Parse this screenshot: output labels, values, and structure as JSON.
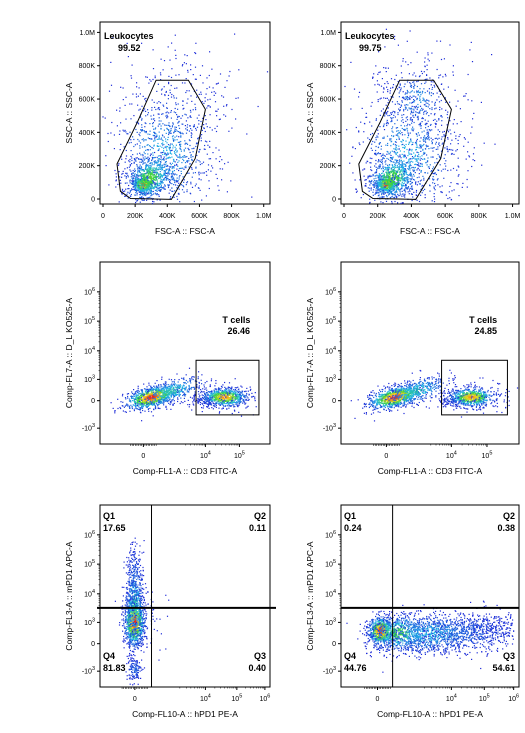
{
  "chart_data": [
    {
      "type": "scatter",
      "plot_kind": "flow-cytometry density dot plot",
      "xlabel": "FSC-A :: FSC-A",
      "ylabel": "SSC-A :: SSC-A",
      "x_ticks": [
        "0",
        "200K",
        "400K",
        "600K",
        "800K",
        "1.0M"
      ],
      "y_ticks": [
        "0",
        "200K",
        "400K",
        "600K",
        "800K",
        "1.0M"
      ],
      "xlim": [
        0,
        1000000
      ],
      "ylim": [
        0,
        1000000
      ],
      "gates": [
        {
          "name": "Leukocytes",
          "value": "99.52",
          "shape": "polygon"
        }
      ]
    },
    {
      "type": "scatter",
      "plot_kind": "flow-cytometry density dot plot",
      "xlabel": "FSC-A :: FSC-A",
      "ylabel": "SSC-A :: SSC-A",
      "x_ticks": [
        "0",
        "200K",
        "400K",
        "600K",
        "800K",
        "1.0M"
      ],
      "y_ticks": [
        "0",
        "200K",
        "400K",
        "600K",
        "800K",
        "1.0M"
      ],
      "xlim": [
        0,
        1000000
      ],
      "ylim": [
        0,
        1000000
      ],
      "gates": [
        {
          "name": "Leukocytes",
          "value": "99.75",
          "shape": "polygon"
        }
      ]
    },
    {
      "type": "scatter",
      "plot_kind": "flow-cytometry density dot plot",
      "xlabel": "Comp-FL1-A :: CD3 FITC-A",
      "ylabel": "Comp-FL7-A :: D_L KO525-A",
      "x_ticks": [
        "0",
        "10^4",
        "10^5"
      ],
      "y_ticks": [
        "-10^3",
        "0",
        "10^3",
        "10^4",
        "10^5",
        "10^6"
      ],
      "scale": "biexponential",
      "gates": [
        {
          "name": "T cells",
          "value": "26.46",
          "shape": "rectangle"
        }
      ]
    },
    {
      "type": "scatter",
      "plot_kind": "flow-cytometry density dot plot",
      "xlabel": "Comp-FL1-A :: CD3 FITC-A",
      "ylabel": "Comp-FL7-A :: D_L KO525-A",
      "x_ticks": [
        "0",
        "10^4",
        "10^5"
      ],
      "y_ticks": [
        "-10^3",
        "0",
        "10^3",
        "10^4",
        "10^5",
        "10^6"
      ],
      "scale": "biexponential",
      "gates": [
        {
          "name": "T cells",
          "value": "24.85",
          "shape": "rectangle"
        }
      ]
    },
    {
      "type": "scatter",
      "plot_kind": "flow-cytometry density dot plot (quadrant gate)",
      "xlabel": "Comp-FL10-A :: hPD1 PE-A",
      "ylabel": "Comp-FL3-A :: mPD1 APC-A",
      "x_ticks": [
        "0",
        "10^4",
        "10^5",
        "10^6"
      ],
      "y_ticks": [
        "-10^3",
        "0",
        "10^3",
        "10^4",
        "10^5",
        "10^6"
      ],
      "scale": "biexponential",
      "quadrants": [
        {
          "name": "Q1",
          "value": "17.65"
        },
        {
          "name": "Q2",
          "value": "0.11"
        },
        {
          "name": "Q3",
          "value": "0.40"
        },
        {
          "name": "Q4",
          "value": "81.83"
        }
      ]
    },
    {
      "type": "scatter",
      "plot_kind": "flow-cytometry density dot plot (quadrant gate)",
      "xlabel": "Comp-FL10-A :: hPD1 PE-A",
      "ylabel": "Comp-FL3-A :: mPD1 APC-A",
      "x_ticks": [
        "0",
        "10^4",
        "10^5",
        "10^6"
      ],
      "y_ticks": [
        "-10^3",
        "0",
        "10^3",
        "10^4",
        "10^5",
        "10^6"
      ],
      "scale": "biexponential",
      "quadrants": [
        {
          "name": "Q1",
          "value": "0.24"
        },
        {
          "name": "Q2",
          "value": "0.38"
        },
        {
          "name": "Q3",
          "value": "54.61"
        },
        {
          "name": "Q4",
          "value": "44.76"
        }
      ]
    }
  ],
  "colors": {
    "density_low": "#1e2ad8",
    "density_mid_low": "#22b8e8",
    "density_mid": "#3ad23a",
    "density_mid_high": "#f0d21e",
    "density_high": "#e81e1e",
    "gate_line": "#000000"
  }
}
